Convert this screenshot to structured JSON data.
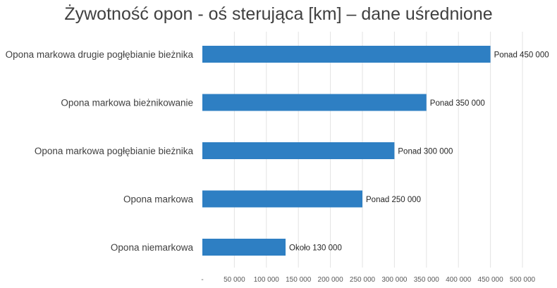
{
  "chart_data": {
    "type": "bar",
    "orientation": "horizontal",
    "title": "Żywotność opon - oś sterująca [km] – dane uśrednione",
    "categories": [
      "Opona markowa drugie pogłębianie bieżnika",
      "Opona markowa bieżnikowanie",
      "Opona markowa pogłębianie bieżnika",
      "Opona markowa",
      "Opona niemarkowa"
    ],
    "values": [
      450000,
      350000,
      300000,
      250000,
      130000
    ],
    "data_labels": [
      "Ponad  450 000",
      "Ponad  350 000",
      "Ponad  300 000",
      "Ponad  250 000",
      "Około  130 000"
    ],
    "xlim": [
      0,
      500000
    ],
    "x_tick_labels": [
      "-",
      "50 000",
      "100 000",
      "150 000",
      "200 000",
      "250 000",
      "300 000",
      "350 000",
      "400 000",
      "450 000",
      "500 000"
    ],
    "xlabel": "",
    "ylabel": "",
    "grid": "vertical",
    "legend": "none",
    "bar_color": "#2e7fc3",
    "grid_color": "#e3e3e3"
  }
}
